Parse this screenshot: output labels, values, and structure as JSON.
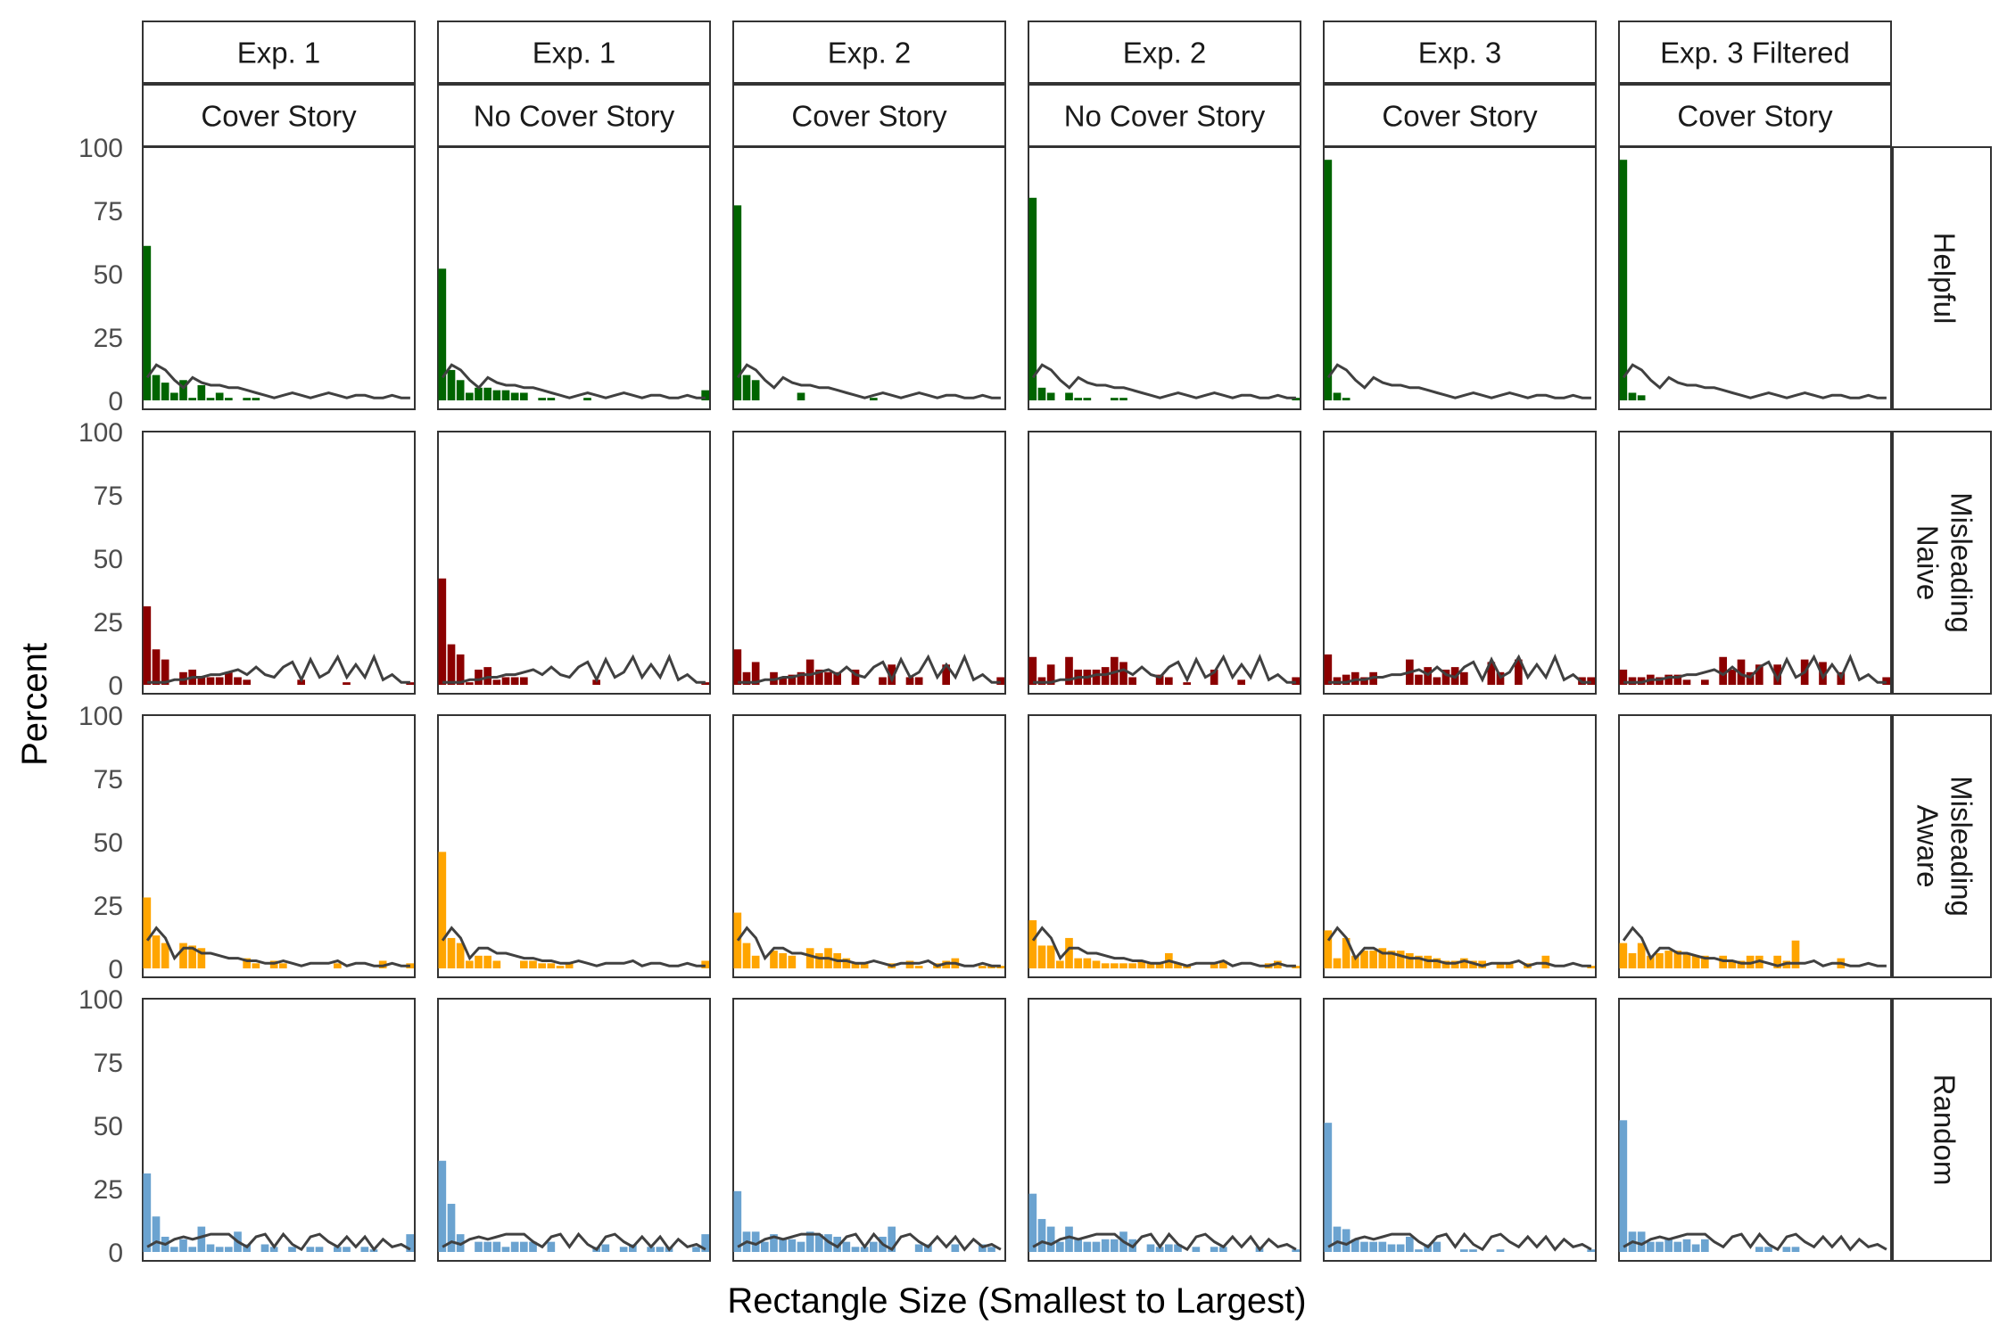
{
  "chart_data": {
    "type": "bar",
    "ylabel": "Percent",
    "xlabel": "Rectangle Size (Smallest to Largest)",
    "ylim": [
      0,
      100
    ],
    "yticks": [
      0,
      25,
      50,
      75,
      100
    ],
    "n_bins": 30,
    "grid": false,
    "columns": [
      {
        "top": "Exp. 1",
        "bottom": "Cover Story"
      },
      {
        "top": "Exp. 1",
        "bottom": "No Cover Story"
      },
      {
        "top": "Exp. 2",
        "bottom": "Cover Story"
      },
      {
        "top": "Exp. 2",
        "bottom": "No Cover Story"
      },
      {
        "top": "Exp. 3",
        "bottom": "Cover Story"
      },
      {
        "top": "Exp. 3 Filtered",
        "bottom": "Cover Story"
      }
    ],
    "rows": [
      {
        "label": [
          "Helpful"
        ],
        "color": "#006400"
      },
      {
        "label": [
          "Misleading",
          "Naive"
        ],
        "color": "#8B0000"
      },
      {
        "label": [
          "Misleading",
          "Aware"
        ],
        "color": "#FFA500"
      },
      {
        "label": [
          "Random"
        ],
        "color": "#6BA3D0"
      }
    ],
    "line_color": "#404040",
    "reference_lines": {
      "helpful": [
        9,
        14,
        12,
        8,
        5,
        9,
        7,
        6,
        6,
        5,
        5,
        4,
        3,
        2,
        1,
        2,
        3,
        2,
        1,
        2,
        3,
        2,
        1,
        2,
        2,
        1,
        1,
        2,
        1,
        1
      ],
      "misleading": [
        1,
        1,
        1,
        2,
        2,
        3,
        3,
        4,
        4,
        5,
        6,
        4,
        7,
        4,
        3,
        7,
        9,
        2,
        10,
        3,
        5,
        11,
        3,
        8,
        3,
        11,
        2,
        4,
        1,
        1
      ],
      "aware": [
        11,
        16,
        12,
        4,
        8,
        8,
        6,
        6,
        5,
        4,
        4,
        3,
        3,
        2,
        2,
        3,
        2,
        1,
        2,
        2,
        2,
        3,
        1,
        2,
        2,
        1,
        1,
        2,
        1,
        1
      ],
      "random": [
        2,
        4,
        3,
        5,
        6,
        5,
        6,
        7,
        7,
        7,
        4,
        2,
        6,
        7,
        2,
        7,
        3,
        1,
        6,
        7,
        4,
        2,
        6,
        2,
        6,
        1,
        5,
        2,
        3,
        1
      ]
    },
    "panels": [
      [
        [
          61,
          10,
          7,
          3,
          8,
          1,
          6,
          1,
          3,
          1,
          0,
          1,
          1,
          0,
          0,
          0,
          0,
          0,
          0,
          0,
          0,
          0,
          0,
          0,
          0,
          0,
          0,
          0,
          0,
          0
        ],
        [
          31,
          14,
          10,
          0,
          5,
          6,
          3,
          3,
          3,
          5,
          3,
          2,
          0,
          0,
          0,
          0,
          0,
          2,
          0,
          0,
          0,
          0,
          1,
          0,
          0,
          0,
          0,
          0,
          0,
          1
        ],
        [
          28,
          13,
          10,
          0,
          10,
          9,
          8,
          0,
          0,
          0,
          0,
          4,
          2,
          0,
          3,
          2,
          0,
          0,
          0,
          0,
          0,
          2,
          0,
          0,
          0,
          0,
          3,
          0,
          0,
          2
        ],
        [
          31,
          14,
          6,
          2,
          5,
          2,
          10,
          3,
          2,
          2,
          8,
          3,
          0,
          3,
          2,
          0,
          2,
          0,
          2,
          2,
          0,
          2,
          2,
          0,
          2,
          1,
          0,
          0,
          0,
          7
        ]
      ],
      [
        [
          52,
          12,
          8,
          3,
          5,
          5,
          4,
          4,
          3,
          3,
          0,
          1,
          1,
          0,
          0,
          0,
          1,
          0,
          0,
          0,
          0,
          0,
          0,
          0,
          0,
          0,
          0,
          0,
          0,
          4
        ],
        [
          42,
          16,
          12,
          1,
          6,
          7,
          2,
          3,
          3,
          3,
          0,
          0,
          0,
          0,
          0,
          0,
          0,
          2,
          0,
          0,
          0,
          0,
          0,
          0,
          0,
          0,
          0,
          0,
          0,
          1
        ],
        [
          46,
          12,
          10,
          3,
          5,
          5,
          3,
          0,
          0,
          3,
          3,
          2,
          2,
          1,
          2,
          0,
          0,
          0,
          0,
          0,
          0,
          0,
          0,
          0,
          0,
          0,
          0,
          0,
          0,
          3
        ],
        [
          36,
          19,
          7,
          0,
          4,
          4,
          4,
          2,
          4,
          4,
          4,
          0,
          4,
          0,
          0,
          0,
          0,
          2,
          3,
          0,
          2,
          3,
          0,
          2,
          2,
          2,
          0,
          0,
          2,
          7
        ]
      ],
      [
        [
          77,
          10,
          8,
          0,
          0,
          0,
          0,
          3,
          0,
          0,
          0,
          0,
          0,
          0,
          0,
          1,
          0,
          0,
          0,
          0,
          0,
          0,
          0,
          0,
          0,
          0,
          0,
          0,
          0,
          0
        ],
        [
          14,
          5,
          9,
          0,
          5,
          3,
          4,
          5,
          10,
          6,
          5,
          5,
          0,
          6,
          0,
          0,
          3,
          8,
          0,
          3,
          3,
          0,
          0,
          8,
          0,
          0,
          0,
          0,
          0,
          3
        ],
        [
          22,
          10,
          5,
          0,
          7,
          6,
          5,
          0,
          8,
          6,
          8,
          6,
          4,
          2,
          2,
          0,
          0,
          2,
          0,
          3,
          1,
          0,
          2,
          3,
          4,
          0,
          0,
          1,
          1,
          1
        ],
        [
          24,
          8,
          8,
          4,
          7,
          5,
          5,
          4,
          8,
          7,
          7,
          6,
          4,
          2,
          2,
          4,
          6,
          10,
          0,
          0,
          3,
          3,
          0,
          0,
          3,
          0,
          0,
          3,
          2,
          0
        ]
      ],
      [
        [
          80,
          5,
          3,
          0,
          3,
          1,
          1,
          0,
          0,
          1,
          1,
          0,
          0,
          0,
          0,
          0,
          0,
          0,
          0,
          0,
          0,
          0,
          0,
          0,
          0,
          0,
          0,
          0,
          0,
          1
        ],
        [
          11,
          3,
          8,
          0,
          11,
          6,
          6,
          6,
          7,
          11,
          9,
          3,
          0,
          0,
          4,
          3,
          0,
          1,
          0,
          0,
          6,
          0,
          0,
          2,
          0,
          0,
          0,
          0,
          0,
          3
        ],
        [
          19,
          9,
          9,
          3,
          12,
          4,
          4,
          3,
          2,
          2,
          2,
          2,
          3,
          2,
          2,
          6,
          2,
          1,
          0,
          0,
          2,
          3,
          0,
          0,
          0,
          0,
          2,
          3,
          0,
          1
        ],
        [
          23,
          13,
          10,
          4,
          10,
          5,
          4,
          4,
          5,
          5,
          8,
          5,
          0,
          3,
          2,
          3,
          3,
          0,
          2,
          0,
          2,
          2,
          0,
          0,
          0,
          2,
          0,
          0,
          0,
          1
        ]
      ],
      [
        [
          95,
          3,
          1,
          0,
          0,
          0,
          0,
          0,
          0,
          0,
          0,
          0,
          0,
          0,
          0,
          0,
          0,
          0,
          0,
          0,
          0,
          0,
          0,
          0,
          0,
          0,
          0,
          0,
          0,
          0
        ],
        [
          12,
          3,
          4,
          5,
          3,
          5,
          0,
          0,
          0,
          10,
          4,
          7,
          3,
          6,
          7,
          5,
          0,
          0,
          9,
          5,
          0,
          10,
          0,
          0,
          0,
          0,
          0,
          0,
          3,
          3
        ],
        [
          15,
          4,
          12,
          5,
          7,
          7,
          8,
          7,
          7,
          6,
          5,
          5,
          4,
          3,
          3,
          4,
          3,
          3,
          0,
          2,
          2,
          0,
          2,
          0,
          5,
          0,
          0,
          0,
          0,
          1
        ],
        [
          51,
          10,
          9,
          5,
          4,
          4,
          4,
          3,
          3,
          6,
          1,
          3,
          4,
          0,
          0,
          1,
          1,
          0,
          0,
          1,
          0,
          0,
          0,
          0,
          0,
          0,
          0,
          0,
          0,
          1
        ]
      ],
      [
        [
          95,
          3,
          2,
          0,
          0,
          0,
          0,
          0,
          0,
          0,
          0,
          0,
          0,
          0,
          0,
          0,
          0,
          0,
          0,
          0,
          0,
          0,
          0,
          0,
          0,
          0,
          0,
          0,
          0,
          0
        ],
        [
          6,
          3,
          3,
          4,
          3,
          4,
          4,
          2,
          0,
          2,
          0,
          11,
          6,
          10,
          5,
          8,
          0,
          8,
          0,
          0,
          10,
          0,
          9,
          0,
          5,
          0,
          0,
          0,
          0,
          3
        ],
        [
          10,
          6,
          10,
          5,
          6,
          7,
          7,
          6,
          5,
          5,
          0,
          5,
          3,
          3,
          5,
          5,
          0,
          5,
          3,
          11,
          0,
          0,
          0,
          0,
          4,
          0,
          0,
          0,
          0,
          0
        ],
        [
          52,
          8,
          8,
          4,
          4,
          5,
          4,
          5,
          3,
          5,
          0,
          0,
          0,
          0,
          0,
          2,
          2,
          0,
          2,
          2,
          0,
          0,
          0,
          0,
          0,
          0,
          0,
          0,
          0,
          0
        ]
      ]
    ]
  }
}
